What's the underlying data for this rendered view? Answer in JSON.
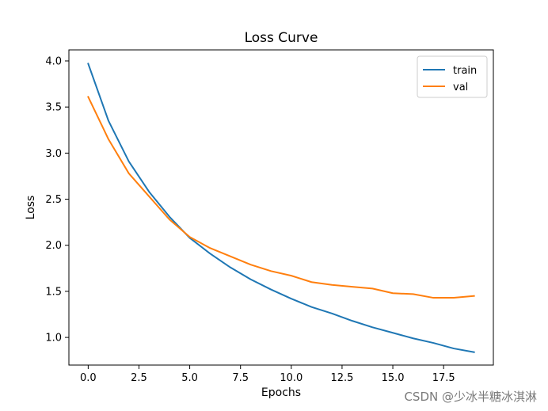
{
  "chart_data": {
    "type": "line",
    "title": "Loss Curve",
    "xlabel": "Epochs",
    "ylabel": "Loss",
    "xlim": [
      -0.95,
      19.95
    ],
    "ylim": [
      0.7,
      4.12
    ],
    "x": [
      0,
      1,
      2,
      3,
      4,
      5,
      6,
      7,
      8,
      9,
      10,
      11,
      12,
      13,
      14,
      15,
      16,
      17,
      18,
      19
    ],
    "xticks": [
      0.0,
      2.5,
      5.0,
      7.5,
      10.0,
      12.5,
      15.0,
      17.5
    ],
    "xtick_labels": [
      "0.0",
      "2.5",
      "5.0",
      "7.5",
      "10.0",
      "12.5",
      "15.0",
      "17.5"
    ],
    "yticks": [
      1.0,
      1.5,
      2.0,
      2.5,
      3.0,
      3.5,
      4.0
    ],
    "ytick_labels": [
      "1.0",
      "1.5",
      "2.0",
      "2.5",
      "3.0",
      "3.5",
      "4.0"
    ],
    "grid": false,
    "legend_position": "top-right",
    "series": [
      {
        "name": "train",
        "color": "#1f77b4",
        "values": [
          3.97,
          3.35,
          2.91,
          2.58,
          2.31,
          2.08,
          1.91,
          1.76,
          1.63,
          1.52,
          1.42,
          1.33,
          1.26,
          1.18,
          1.11,
          1.05,
          0.99,
          0.94,
          0.88,
          0.84
        ]
      },
      {
        "name": "val",
        "color": "#ff7f0e",
        "values": [
          3.61,
          3.15,
          2.78,
          2.53,
          2.28,
          2.09,
          1.97,
          1.88,
          1.79,
          1.72,
          1.67,
          1.6,
          1.57,
          1.55,
          1.53,
          1.48,
          1.47,
          1.43,
          1.43,
          1.45
        ]
      }
    ]
  },
  "watermark": "CSDN @少冰半糖冰淇淋"
}
